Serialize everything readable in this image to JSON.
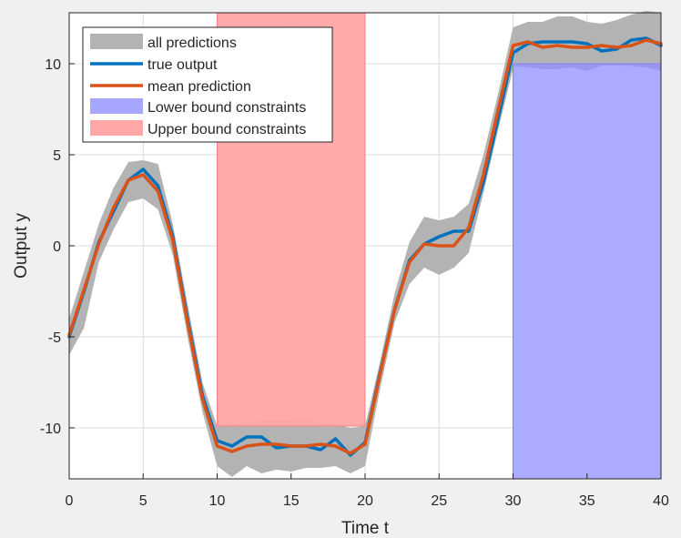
{
  "chart_data": {
    "type": "line",
    "xlabel": "Time t",
    "ylabel": "Output y",
    "xlim": [
      0,
      40
    ],
    "ylim": [
      -12.8,
      12.8
    ],
    "xticks": [
      0,
      5,
      10,
      15,
      20,
      25,
      30,
      35,
      40
    ],
    "xtick_labels": [
      "0",
      "5",
      "10",
      "15",
      "20",
      "25",
      "30",
      "35",
      "40"
    ],
    "yticks": [
      -10,
      -5,
      0,
      5,
      10
    ],
    "ytick_labels": [
      "-10",
      "-5",
      "0",
      "5",
      "10"
    ],
    "grid": true,
    "legend_placement": "top-left",
    "legend": [
      "all predictions",
      "true output",
      "mean prediction",
      "Lower bound constraints",
      "Upper bound constraints"
    ],
    "colors": {
      "all_predictions": "#b3b3b3",
      "true_output": "#0072bd",
      "mean_prediction": "#d95319",
      "lower_bound": "#a6a6ff",
      "upper_bound": "#ffa6a6"
    },
    "x": [
      0,
      1,
      2,
      3,
      4,
      5,
      6,
      7,
      8,
      9,
      10,
      11,
      12,
      13,
      14,
      15,
      16,
      17,
      18,
      19,
      20,
      21,
      22,
      23,
      24,
      25,
      26,
      27,
      28,
      29,
      30,
      31,
      32,
      33,
      34,
      35,
      36,
      37,
      38,
      39,
      40
    ],
    "series": [
      {
        "name": "true output",
        "values": [
          -5.0,
          -2.5,
          0.2,
          1.9,
          3.6,
          4.2,
          3.3,
          0.5,
          -4.0,
          -8.2,
          -10.7,
          -11.0,
          -10.5,
          -10.5,
          -11.1,
          -11.0,
          -11.0,
          -11.2,
          -10.6,
          -11.5,
          -10.8,
          -7.0,
          -3.5,
          -0.8,
          0.1,
          0.5,
          0.8,
          0.8,
          3.5,
          7.0,
          10.6,
          11.1,
          11.2,
          11.2,
          11.2,
          11.1,
          10.7,
          10.8,
          11.3,
          11.4,
          11.0
        ]
      },
      {
        "name": "mean prediction",
        "values": [
          -4.9,
          -2.4,
          0.1,
          2.1,
          3.6,
          3.9,
          3.0,
          0.3,
          -4.2,
          -8.4,
          -11.0,
          -11.3,
          -11.0,
          -10.9,
          -10.9,
          -11.0,
          -11.0,
          -10.9,
          -11.0,
          -11.4,
          -10.9,
          -7.1,
          -3.5,
          -0.9,
          0.1,
          0.0,
          0.0,
          1.0,
          3.9,
          7.5,
          11.0,
          11.2,
          10.9,
          11.0,
          10.9,
          10.9,
          11.0,
          10.9,
          11.0,
          11.3,
          11.1
        ]
      }
    ],
    "all_predictions_band": {
      "upper": [
        -4.0,
        -1.4,
        1.2,
        3.2,
        4.6,
        4.7,
        4.5,
        1.2,
        -3.2,
        -7.5,
        -9.9,
        -9.8,
        -9.7,
        -9.6,
        -9.6,
        -9.6,
        -9.5,
        -9.7,
        -9.8,
        -10.0,
        -9.9,
        -6.4,
        -2.6,
        0.2,
        1.6,
        1.4,
        1.6,
        2.3,
        5.0,
        8.4,
        12.0,
        12.3,
        12.3,
        12.6,
        12.6,
        12.3,
        12.2,
        12.4,
        12.7,
        12.9,
        12.8
      ],
      "lower": [
        -6.0,
        -4.5,
        -0.9,
        0.9,
        2.4,
        2.6,
        2.0,
        -0.5,
        -5.0,
        -9.1,
        -12.1,
        -12.7,
        -12.1,
        -12.5,
        -12.3,
        -12.4,
        -12.2,
        -12.2,
        -12.1,
        -12.5,
        -12.1,
        -7.9,
        -4.2,
        -2.1,
        -1.2,
        -1.6,
        -1.2,
        -0.4,
        2.9,
        6.4,
        9.7,
        9.9,
        9.9,
        9.9,
        9.8,
        9.9,
        9.9,
        9.9,
        9.8,
        9.8,
        9.6
      ]
    },
    "lower_bound_constraints": {
      "x_range": [
        30,
        40
      ],
      "upper": [
        10.0,
        10.0,
        10.0,
        10.0,
        10.0,
        10.0,
        10.0,
        10.0,
        10.0,
        10.0,
        10.0
      ],
      "lower": [
        9.9,
        9.8,
        9.7,
        9.7,
        9.8,
        9.6,
        9.9,
        9.9,
        9.9,
        9.8,
        9.6
      ]
    },
    "upper_bound_constraints": {
      "x_range": [
        10,
        20
      ],
      "upper": [
        12.8,
        12.8
      ],
      "lower": [
        -9.9,
        -9.9
      ]
    }
  }
}
